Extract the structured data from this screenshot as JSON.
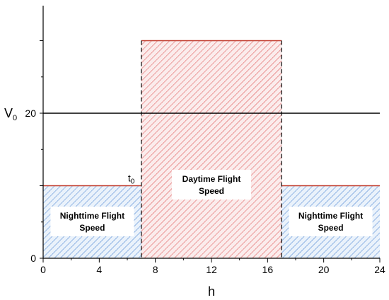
{
  "chart_data": {
    "type": "area",
    "xlabel": "h",
    "ylabel": "",
    "xlim": [
      0,
      24
    ],
    "ylim": [
      0,
      30
    ],
    "x_ticks": [
      0,
      4,
      8,
      12,
      16,
      20,
      24
    ],
    "y_ticks": [
      0,
      20
    ],
    "y_tick_labels": [
      "0",
      "20"
    ],
    "regions": [
      {
        "label_lines": [
          "Nighttime Flight",
          "Speed"
        ],
        "x_start": 0,
        "x_end": 7,
        "value": 10,
        "hatch": "blue",
        "edge": "#c0392b"
      },
      {
        "label_lines": [
          "Daytime Flight",
          "Speed"
        ],
        "x_start": 7,
        "x_end": 17,
        "value": 30,
        "hatch": "red",
        "edge": "#c0392b"
      },
      {
        "label_lines": [
          "Nighttime Flight",
          "Speed"
        ],
        "x_start": 17,
        "x_end": 24,
        "value": 10,
        "hatch": "blue",
        "edge": "#c0392b"
      }
    ],
    "reference_line": {
      "label": "V",
      "subscript": "0",
      "value": 20
    },
    "annotations": [
      {
        "text": "t",
        "subscript": "0",
        "x": 7,
        "y": 10
      }
    ],
    "colors": {
      "red_hatch": "#e06060",
      "blue_hatch": "#5b8fd6",
      "edge": "#c0392b",
      "axis": "#000000"
    }
  }
}
